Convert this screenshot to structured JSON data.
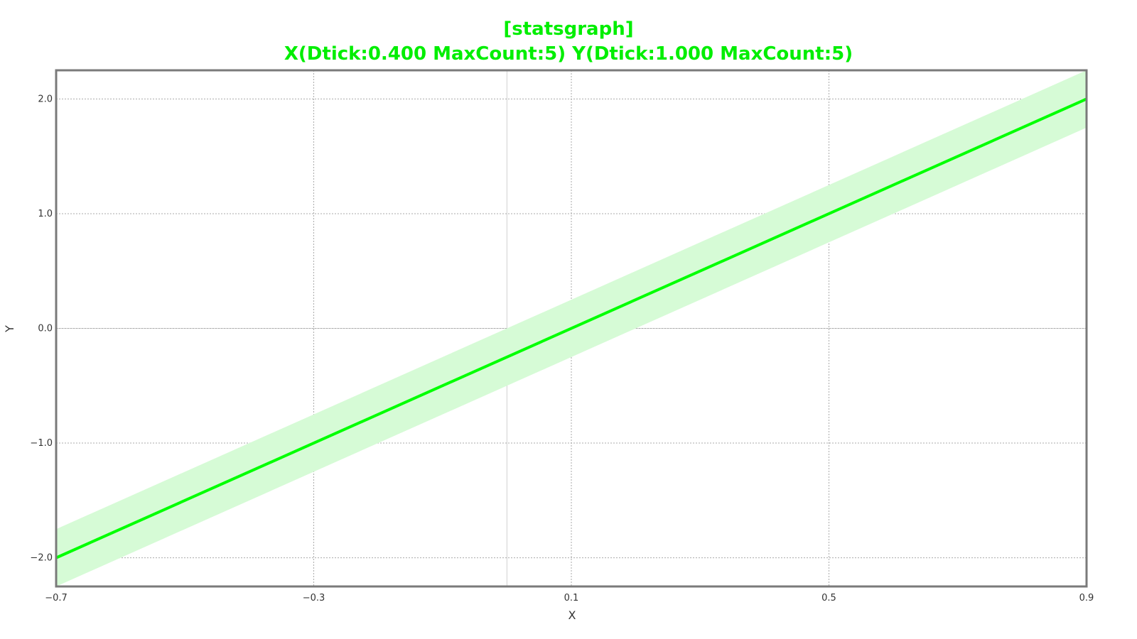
{
  "chart_data": {
    "type": "line",
    "title": "[statsgraph]",
    "subtitle": "X(Dtick:0.400 MaxCount:5) Y(Dtick:1.000 MaxCount:5)",
    "xlabel": "X",
    "ylabel": "Y",
    "xlim": [
      -0.7,
      0.9
    ],
    "ylim": [
      -2.25,
      2.25
    ],
    "x_ticks": [
      -0.7,
      -0.3,
      0.1,
      0.5,
      0.9
    ],
    "x_tick_labels": [
      "−0.7",
      "−0.3",
      "0.1",
      "0.5",
      "0.9"
    ],
    "y_ticks": [
      -2.0,
      -1.0,
      0.0,
      1.0,
      2.0
    ],
    "y_tick_labels": [
      "−2.0",
      "−1.0",
      "0.0",
      "1.0",
      "2.0"
    ],
    "zero_lines": {
      "x": 0,
      "y": 0
    },
    "grid": true,
    "series": [
      {
        "x": [
          -0.7,
          0.9
        ],
        "y": [
          -2.0,
          2.0
        ],
        "band_lower": [
          -2.25,
          1.75
        ],
        "band_upper": [
          -1.75,
          2.25
        ]
      }
    ]
  },
  "colors": {
    "title": "#00ee00",
    "line": "#00ff00",
    "band": "#d6fbd6",
    "frame": "#7a7a7a",
    "grid": "#aaaaaa",
    "zero_line": "#d0d0d0"
  }
}
